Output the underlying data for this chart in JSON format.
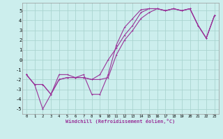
{
  "xlabel": "Windchill (Refroidissement éolien,°C)",
  "xlim": [
    -0.5,
    23.5
  ],
  "ylim": [
    -5.5,
    5.8
  ],
  "xticks": [
    0,
    1,
    2,
    3,
    4,
    5,
    6,
    7,
    8,
    9,
    10,
    11,
    12,
    13,
    14,
    15,
    16,
    17,
    18,
    19,
    20,
    21,
    22,
    23
  ],
  "yticks": [
    -5,
    -4,
    -3,
    -2,
    -1,
    0,
    1,
    2,
    3,
    4,
    5
  ],
  "bg_color": "#cceeed",
  "grid_color": "#aad4d0",
  "line_color": "#993399",
  "series1": {
    "x": [
      0,
      1,
      2,
      3,
      4,
      5,
      6,
      7,
      8,
      9,
      10,
      11,
      12,
      13,
      14,
      15,
      16,
      17,
      18,
      19,
      20,
      21,
      22,
      23
    ],
    "y": [
      -1.5,
      -2.5,
      -5.0,
      -3.5,
      -1.5,
      -1.5,
      -1.8,
      -1.5,
      -3.5,
      -3.5,
      -1.5,
      1.5,
      3.3,
      4.2,
      5.1,
      5.2,
      5.2,
      5.0,
      5.2,
      5.0,
      5.2,
      3.5,
      2.2,
      4.5
    ]
  },
  "series2": {
    "x": [
      0,
      1,
      2,
      3,
      4,
      5,
      6,
      7,
      8,
      9,
      10,
      11,
      12,
      13,
      14,
      15,
      16,
      17,
      18,
      19,
      20,
      21,
      22,
      23
    ],
    "y": [
      -1.5,
      -2.5,
      -2.5,
      -3.5,
      -2.0,
      -1.8,
      -1.8,
      -1.8,
      -2.0,
      -1.5,
      0.0,
      1.2,
      2.5,
      3.5,
      4.8,
      5.2,
      5.2,
      5.0,
      5.2,
      5.0,
      5.2,
      3.5,
      2.2,
      4.5
    ]
  },
  "series3": {
    "x": [
      0,
      1,
      2,
      3,
      4,
      5,
      6,
      7,
      8,
      9,
      10,
      11,
      12,
      13,
      14,
      15,
      16,
      17,
      18,
      19,
      20,
      21,
      22,
      23
    ],
    "y": [
      -1.5,
      -2.5,
      -2.5,
      -3.5,
      -2.0,
      -1.8,
      -1.8,
      -1.8,
      -2.0,
      -2.0,
      -1.8,
      0.5,
      2.0,
      3.0,
      4.2,
      4.8,
      5.2,
      5.0,
      5.2,
      5.0,
      5.2,
      3.5,
      2.2,
      4.5
    ]
  }
}
